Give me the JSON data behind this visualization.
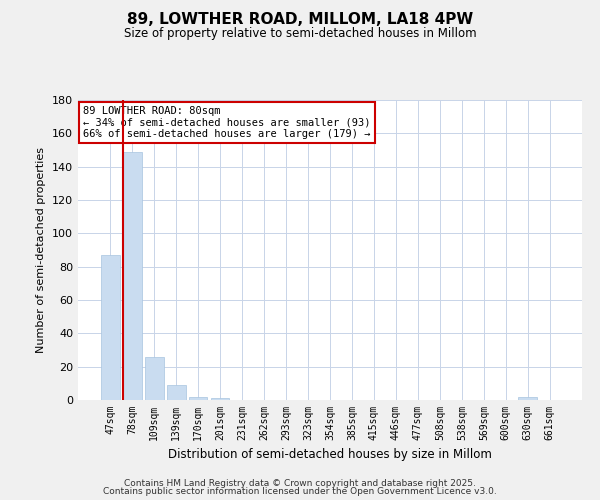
{
  "title": "89, LOWTHER ROAD, MILLOM, LA18 4PW",
  "subtitle": "Size of property relative to semi-detached houses in Millom",
  "bar_labels": [
    "47sqm",
    "78sqm",
    "109sqm",
    "139sqm",
    "170sqm",
    "201sqm",
    "231sqm",
    "262sqm",
    "293sqm",
    "323sqm",
    "354sqm",
    "385sqm",
    "415sqm",
    "446sqm",
    "477sqm",
    "508sqm",
    "538sqm",
    "569sqm",
    "600sqm",
    "630sqm",
    "661sqm"
  ],
  "bar_values": [
    87,
    149,
    26,
    9,
    2,
    1,
    0,
    0,
    0,
    0,
    0,
    0,
    0,
    0,
    0,
    0,
    0,
    0,
    0,
    2,
    0
  ],
  "bar_color": "#c9dcf0",
  "bar_edge_color": "#a8c4e0",
  "vline_color": "#cc0000",
  "ylabel": "Number of semi-detached properties",
  "xlabel": "Distribution of semi-detached houses by size in Millom",
  "ylim": [
    0,
    180
  ],
  "yticks": [
    0,
    20,
    40,
    60,
    80,
    100,
    120,
    140,
    160,
    180
  ],
  "annotation_title": "89 LOWTHER ROAD: 80sqm",
  "annotation_line1": "← 34% of semi-detached houses are smaller (93)",
  "annotation_line2": "66% of semi-detached houses are larger (179) →",
  "footer1": "Contains HM Land Registry data © Crown copyright and database right 2025.",
  "footer2": "Contains public sector information licensed under the Open Government Licence v3.0.",
  "bg_color": "#f0f0f0",
  "plot_bg_color": "#ffffff",
  "grid_color": "#c8d4e8"
}
